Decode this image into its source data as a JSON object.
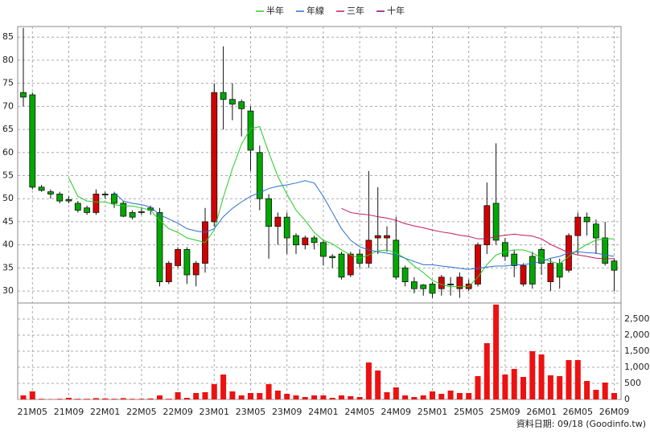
{
  "chart_data": {
    "type": "candlestick",
    "categories": [
      null,
      "21M05",
      null,
      null,
      null,
      "21M09",
      null,
      null,
      null,
      "22M01",
      null,
      null,
      null,
      "22M05",
      null,
      null,
      null,
      "22M09",
      null,
      null,
      null,
      "23M01",
      null,
      null,
      null,
      "23M05",
      null,
      null,
      null,
      "23M09",
      null,
      null,
      null,
      "24M01",
      null,
      null,
      null,
      "24M05",
      null,
      null,
      null,
      "24M09",
      null,
      null,
      null,
      "25M01",
      null,
      null,
      null,
      "25M05",
      null,
      null,
      null,
      "25M09",
      null,
      null,
      null,
      "26M01",
      null,
      null,
      null,
      "26M05",
      null,
      null,
      null,
      "26M09"
    ],
    "open": [
      73,
      72.5,
      52.5,
      51.5,
      51,
      49.8,
      49,
      48,
      47,
      51,
      51,
      49,
      47,
      47.2,
      48,
      47,
      32,
      35.5,
      39,
      33.5,
      36,
      45,
      73,
      71.5,
      71,
      69,
      60,
      50,
      44,
      46,
      42,
      40,
      41.5,
      40.5,
      37.5,
      38,
      33.5,
      38,
      36,
      41.5,
      41.5,
      41,
      35,
      32,
      31.3,
      31.5,
      30.5,
      31.5,
      30.5,
      30.5,
      31.5,
      40,
      49,
      40.5,
      38,
      31.5,
      37.5,
      39,
      32,
      36,
      34.5,
      42,
      46,
      44.5,
      41.5,
      36.5
    ],
    "high": [
      87,
      73,
      53,
      52,
      51.5,
      50.5,
      49.5,
      48.5,
      52,
      51.5,
      51.5,
      49.5,
      47.5,
      48,
      48.5,
      48,
      36.5,
      39.5,
      39.5,
      36.5,
      48,
      75,
      83,
      75,
      71.5,
      70,
      61.5,
      51,
      47,
      47,
      42.5,
      42,
      42,
      41,
      38,
      38.5,
      38.5,
      39,
      56,
      52.5,
      44,
      46,
      35.5,
      33,
      31.5,
      32,
      33.5,
      33,
      34,
      32.5,
      40.5,
      53.5,
      62,
      41.5,
      39,
      36,
      38.5,
      39.5,
      37,
      37,
      42.5,
      47,
      47,
      45.5,
      45,
      37
    ],
    "low": [
      70,
      52,
      51.5,
      50,
      49,
      49,
      47,
      46.5,
      46.5,
      50,
      48,
      46,
      45.5,
      46.5,
      46.5,
      31,
      31.5,
      35,
      31.5,
      31,
      34,
      44,
      65,
      67,
      63.5,
      56,
      47.5,
      37,
      40,
      38,
      38,
      39,
      39,
      35.5,
      35,
      32.5,
      33,
      35,
      35,
      38,
      38.5,
      32.5,
      31,
      29.5,
      29,
      28.5,
      29,
      29,
      28.5,
      30,
      31,
      38,
      40,
      36.5,
      33,
      31,
      30.5,
      33.5,
      30,
      30.5,
      34,
      38,
      42,
      38,
      35.5,
      30
    ],
    "close": [
      72,
      52.5,
      51.8,
      51,
      49.5,
      49.5,
      47.5,
      47,
      51,
      50.8,
      49,
      46.2,
      46,
      47,
      47.5,
      32,
      36,
      39,
      33.5,
      36,
      45,
      73,
      71.5,
      70.5,
      69.5,
      60.5,
      50,
      44,
      46,
      41.5,
      40,
      41.5,
      40.5,
      37.5,
      37.2,
      33,
      38,
      36,
      41,
      42,
      42,
      33,
      32,
      30.5,
      30.5,
      29.5,
      33,
      31.3,
      33,
      31.5,
      40,
      48.5,
      41,
      37.5,
      35.5,
      35.5,
      31.5,
      36,
      36,
      33,
      42,
      46,
      45,
      41.5,
      36,
      34.5
    ],
    "up_color": "#d40000",
    "down_color": "#00a800",
    "ylim": [
      27.4,
      87.3
    ],
    "yticks": [
      30,
      35,
      40,
      45,
      50,
      55,
      60,
      65,
      70,
      75,
      80,
      85
    ],
    "grid": true,
    "volume": {
      "values": [
        125,
        250,
        20,
        10,
        20,
        50,
        20,
        20,
        40,
        30,
        20,
        40,
        20,
        20,
        30,
        125,
        20,
        225,
        50,
        200,
        225,
        475,
        775,
        250,
        125,
        200,
        200,
        475,
        275,
        175,
        125,
        75,
        125,
        125,
        50,
        125,
        100,
        75,
        1150,
        900,
        225,
        375,
        125,
        75,
        125,
        250,
        175,
        275,
        200,
        200,
        725,
        1750,
        2950,
        775,
        950,
        700,
        1500,
        1400,
        750,
        725,
        1225,
        1225,
        575,
        300,
        525,
        200
      ],
      "color": "#ee1111",
      "y2lim": [
        0,
        3000
      ],
      "y2ticks": [
        0,
        500,
        {
          "value": 1000,
          "label": "1,000"
        },
        {
          "value": 1500,
          "label": "1,500"
        },
        {
          "value": 2000,
          "label": "2,000"
        },
        {
          "value": 2500,
          "label": "2,500"
        }
      ]
    },
    "series": [
      {
        "name": "半年",
        "color": "#22cc22",
        "values": [
          null,
          null,
          null,
          null,
          null,
          54.5,
          50.5,
          49.5,
          49.3,
          49.3,
          48.7,
          48.4,
          48.4,
          48,
          47.5,
          45.3,
          43.5,
          42.7,
          41.5,
          41,
          40.5,
          43.2,
          50.3,
          56.5,
          61.8,
          65.2,
          65.6,
          60,
          54.8,
          51,
          47.5,
          45.3,
          42.7,
          41,
          40.2,
          38.9,
          37.8,
          37.1,
          37.8,
          38.7,
          38.9,
          38.2,
          37.1,
          35.4,
          34,
          32.3,
          31.4,
          30.9,
          31,
          31,
          33,
          35.7,
          37.8,
          38.5,
          38.9,
          38.9,
          38.3,
          37.1,
          36.4,
          35.9,
          37.5,
          38.9,
          40.1,
          41,
          41.3,
          41.3
        ]
      },
      {
        "name": "年線",
        "color": "#2a6fd0",
        "values": [
          null,
          null,
          null,
          null,
          null,
          null,
          null,
          null,
          null,
          null,
          51.3,
          49.5,
          49,
          48.7,
          48.2,
          46.5,
          45.6,
          44.7,
          43.5,
          43,
          42.7,
          43.5,
          46.1,
          47.9,
          49.3,
          50.5,
          51.3,
          52.2,
          52.7,
          53,
          53.4,
          53.9,
          53.4,
          50.5,
          47,
          43.5,
          41,
          39.6,
          38.9,
          38.5,
          38.2,
          37.8,
          37.1,
          36.4,
          35.7,
          35.7,
          35.4,
          35.2,
          34.9,
          34.7,
          34.9,
          35.2,
          35.4,
          35.4,
          35.7,
          35.7,
          36,
          36.4,
          37.1,
          37.5,
          38.3,
          38.5,
          38.3,
          38.2,
          37.8,
          37.5
        ]
      },
      {
        "name": "三年",
        "color": "#c01860",
        "values": [
          null,
          null,
          null,
          null,
          null,
          null,
          null,
          null,
          null,
          null,
          null,
          null,
          null,
          null,
          null,
          null,
          null,
          null,
          null,
          null,
          null,
          null,
          null,
          null,
          null,
          null,
          null,
          null,
          null,
          null,
          null,
          null,
          null,
          null,
          null,
          47.9,
          47,
          46.7,
          46.5,
          46.1,
          45.8,
          45.3,
          44.6,
          44.1,
          43.7,
          43.2,
          42.8,
          42.5,
          42.1,
          41.8,
          41.3,
          41.3,
          41.8,
          42.1,
          42.3,
          42.1,
          41.9,
          41.3,
          40.1,
          39.2,
          38.3,
          37.8,
          37.5,
          37.1,
          37,
          37
        ]
      },
      {
        "name": "十年",
        "color": "#800080",
        "values": [
          null,
          null,
          null,
          null,
          null,
          null,
          null,
          null,
          null,
          null,
          null,
          null,
          null,
          null,
          null,
          null,
          null,
          null,
          null,
          null,
          null,
          null,
          null,
          null,
          null,
          null,
          null,
          null,
          null,
          null,
          null,
          null,
          null,
          null,
          null,
          null,
          null,
          null,
          null,
          null,
          null,
          null,
          null,
          null,
          null,
          null,
          null,
          null,
          null,
          null,
          null,
          null,
          null,
          null,
          null,
          null,
          null,
          null,
          null,
          null,
          null,
          null,
          null,
          null,
          null,
          null
        ]
      }
    ],
    "source_note": "資料日期: 09/18  (Goodinfo.tw)"
  }
}
